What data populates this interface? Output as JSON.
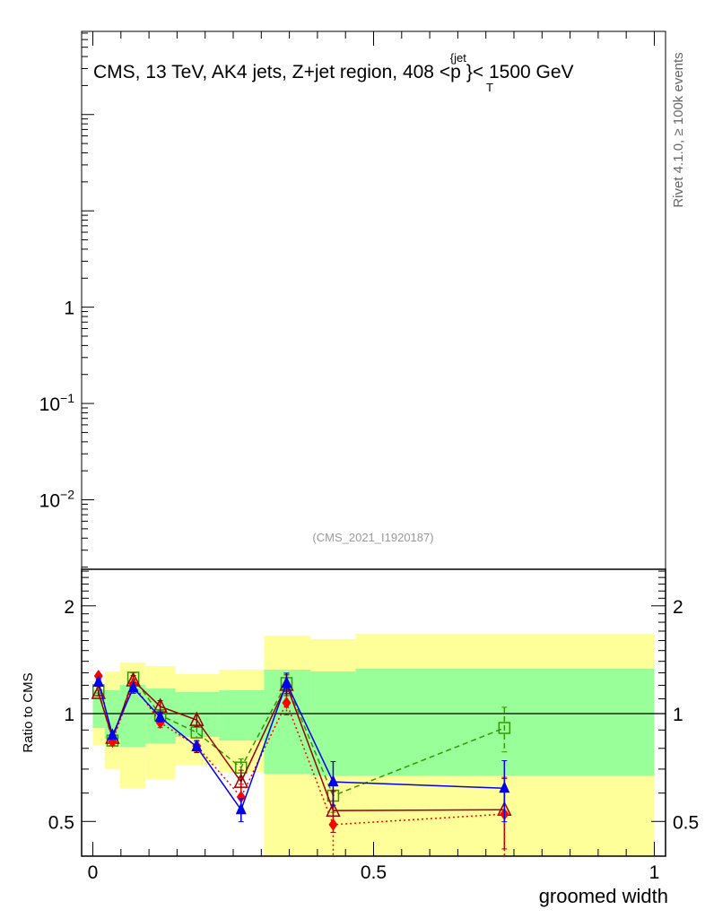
{
  "chart_data": {
    "type": "line",
    "title": "CMS, 13 TeV, AK4 jets, Z+jet region, 408 <p",
    "title_sup": "{jet",
    "title_sub": "T",
    "title_end": "}< 1500 GeV",
    "side_label": "Rivet 4.1.0, ≥ 100k events",
    "watermark": "(CMS_2021_I1920187)",
    "xlabel": "groomed width",
    "main_panel": {
      "yscale": "log",
      "ylim": [
        0.0019,
        730
      ],
      "ytick_labels": [
        {
          "value": 1,
          "base": "1",
          "exp": ""
        },
        {
          "value": 0.1,
          "base": "10",
          "exp": "−1"
        },
        {
          "value": 0.01,
          "base": "10",
          "exp": "−2"
        }
      ]
    },
    "ratio_panel": {
      "ylabel": "Ratio to CMS",
      "yscale": "log",
      "ylim": [
        0.4,
        2.53
      ],
      "yticks": [
        0.5,
        1,
        2
      ],
      "ytick_labels": [
        "0.5",
        "1",
        "2"
      ],
      "reference_line": 1
    },
    "xlim": [
      -0.02,
      1.02
    ],
    "xticks": [
      0,
      0.5,
      1
    ],
    "xtick_labels": [
      "0",
      "0.5",
      "1"
    ],
    "bin_edges": [
      0,
      0.021,
      0.048,
      0.094,
      0.147,
      0.225,
      0.305,
      0.388,
      0.468,
      1.0
    ],
    "band_yellow": {
      "color": "#ffff99",
      "lower": [
        0.817,
        0.699,
        0.619,
        0.656,
        0.719,
        0.687,
        0.4,
        0.4,
        0.4
      ],
      "upper": [
        1.17,
        1.312,
        1.39,
        1.358,
        1.289,
        1.327,
        1.653,
        1.615,
        1.672
      ]
    },
    "band_green": {
      "color": "#99ff99",
      "lower": [
        0.912,
        0.851,
        0.808,
        0.826,
        0.861,
        0.841,
        0.679,
        0.671,
        0.671
      ],
      "upper": [
        1.162,
        1.162,
        1.203,
        1.175,
        1.149,
        1.162,
        1.327,
        1.312,
        1.335
      ]
    },
    "x": [
      0.01,
      0.035,
      0.072,
      0.12,
      0.185,
      0.264,
      0.345,
      0.428,
      0.733
    ],
    "series": [
      {
        "name": "green-squares",
        "color": "#339900",
        "dash": "6,4",
        "marker": "open-square",
        "values": [
          1.162,
          0.841,
          1.26,
          0.99,
          0.886,
          0.707,
          1.217,
          0.59,
          0.912
        ],
        "err": [
          0.02,
          0.02,
          0.04,
          0.03,
          0.03,
          0.04,
          0.08,
          0.06,
          0.13
        ]
      },
      {
        "name": "darkred-open-triangles",
        "color": "#990000",
        "dash": "",
        "marker": "open-triangle",
        "values": [
          1.142,
          0.856,
          1.238,
          1.047,
          0.96,
          0.645,
          1.203,
          0.536,
          0.539
        ],
        "err": [
          0.02,
          0.02,
          0.04,
          0.04,
          0.04,
          0.05,
          0.08,
          0.07,
          0.12
        ]
      },
      {
        "name": "red-diamonds",
        "color": "#ff0000",
        "dash": "2,3",
        "marker": "filled-diamond",
        "values": [
          1.274,
          0.836,
          1.21,
          0.944,
          0.812,
          0.585,
          1.072,
          0.49,
          0.524
        ],
        "err": [
          0.02,
          0.02,
          0.04,
          0.03,
          0.03,
          0.05,
          0.08,
          0.12,
          0.14
        ]
      },
      {
        "name": "blue-triangles",
        "color": "#0000ee",
        "dash": "",
        "marker": "filled-triangle",
        "values": [
          1.224,
          0.87,
          1.18,
          0.977,
          0.808,
          0.539,
          1.217,
          0.645,
          0.619
        ],
        "err": [
          0.02,
          0.02,
          0.04,
          0.03,
          0.03,
          0.04,
          0.08,
          0.09,
          0.12
        ]
      }
    ]
  }
}
